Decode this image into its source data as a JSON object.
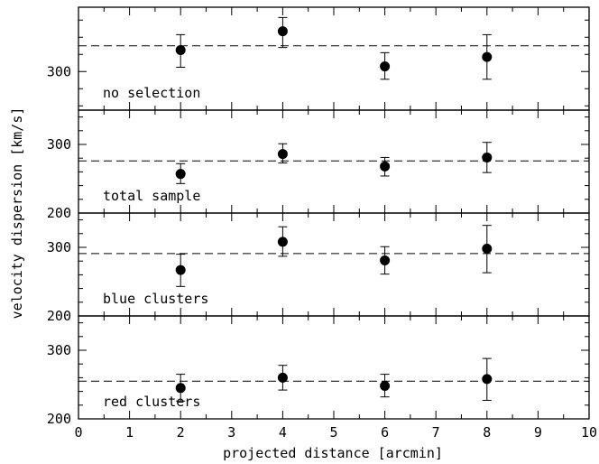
{
  "chart_data": {
    "type": "scatter",
    "xlabel": "projected distance [arcmin]",
    "ylabel": "velocity dispersion [km/s]",
    "xlim": [
      0,
      10
    ],
    "x_ticks": [
      "0",
      "1",
      "2",
      "3",
      "4",
      "5",
      "6",
      "7",
      "8",
      "9",
      "10"
    ],
    "panels": [
      {
        "label": "no selection",
        "ylim": [
          255,
          375
        ],
        "y_tick_labels": [
          {
            "value": 300,
            "text": "300"
          }
        ],
        "reference_level": 330,
        "points": [
          {
            "x": 2,
            "y": 325,
            "err_low": 305,
            "err_high": 343
          },
          {
            "x": 4,
            "y": 347,
            "err_low": 328,
            "err_high": 363
          },
          {
            "x": 6,
            "y": 306,
            "err_low": 291,
            "err_high": 322
          },
          {
            "x": 8,
            "y": 317,
            "err_low": 291,
            "err_high": 343
          }
        ]
      },
      {
        "label": "total sample",
        "ylim": [
          200,
          350
        ],
        "y_tick_labels": [
          {
            "value": 300,
            "text": "300"
          },
          {
            "value": 200,
            "text": "200"
          }
        ],
        "reference_level": 276,
        "points": [
          {
            "x": 2,
            "y": 257,
            "err_low": 243,
            "err_high": 272
          },
          {
            "x": 4,
            "y": 286,
            "err_low": 273,
            "err_high": 301
          },
          {
            "x": 6,
            "y": 268,
            "err_low": 254,
            "err_high": 281
          },
          {
            "x": 8,
            "y": 281,
            "err_low": 259,
            "err_high": 303
          }
        ]
      },
      {
        "label": "blue clusters",
        "ylim": [
          200,
          350
        ],
        "y_tick_labels": [
          {
            "value": 300,
            "text": "300"
          },
          {
            "value": 200,
            "text": "200"
          }
        ],
        "reference_level": 291,
        "points": [
          {
            "x": 2,
            "y": 267,
            "err_low": 243,
            "err_high": 290
          },
          {
            "x": 4,
            "y": 308,
            "err_low": 287,
            "err_high": 330
          },
          {
            "x": 6,
            "y": 281,
            "err_low": 261,
            "err_high": 301
          },
          {
            "x": 8,
            "y": 298,
            "err_low": 263,
            "err_high": 332
          }
        ]
      },
      {
        "label": "red clusters",
        "ylim": [
          200,
          350
        ],
        "y_tick_labels": [
          {
            "value": 300,
            "text": "300"
          },
          {
            "value": 200,
            "text": "200"
          }
        ],
        "reference_level": 255,
        "points": [
          {
            "x": 2,
            "y": 245,
            "err_low": 226,
            "err_high": 265
          },
          {
            "x": 4,
            "y": 260,
            "err_low": 242,
            "err_high": 278
          },
          {
            "x": 6,
            "y": 248,
            "err_low": 232,
            "err_high": 265
          },
          {
            "x": 8,
            "y": 258,
            "err_low": 227,
            "err_high": 288
          }
        ]
      }
    ]
  }
}
